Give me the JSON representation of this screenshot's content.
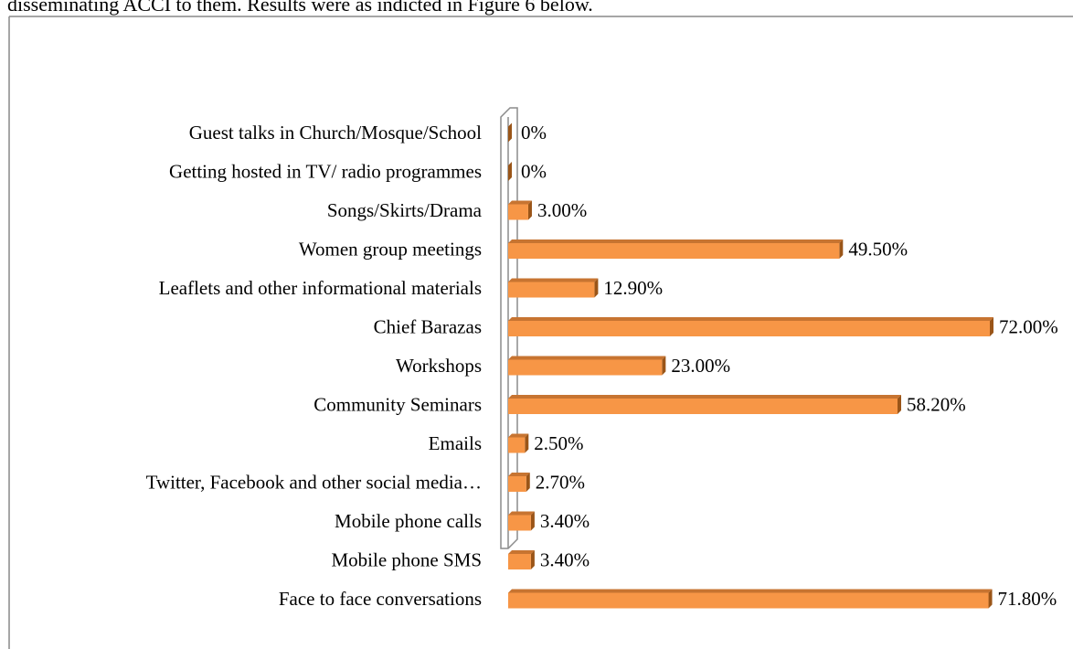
{
  "intro_text": "disseminating ACCI to them. Results were as indicted in Figure 6 below.",
  "chart_data": {
    "type": "bar",
    "orientation": "horizontal",
    "categories": [
      "Guest talks in Church/Mosque/School",
      "Getting hosted in TV/ radio programmes",
      "Songs/Skirts/Drama",
      "Women group meetings",
      "Leaflets and other informational materials",
      "Chief Barazas",
      "Workshops",
      "Community Seminars",
      "Emails",
      "Twitter, Facebook and other social media…",
      "Mobile phone calls",
      "Mobile phone SMS",
      "Face to face conversations"
    ],
    "values": [
      0,
      0,
      3,
      49.5,
      12.9,
      72,
      23,
      58.2,
      2.5,
      2.7,
      3.4,
      3.4,
      71.8
    ],
    "value_labels": [
      "0%",
      "0%",
      "3.00%",
      "49.50%",
      "12.90%",
      "72.00%",
      "23.00%",
      "58.20%",
      "2.50%",
      "2.70%",
      "3.40%",
      "3.40%",
      "71.80%"
    ],
    "color": "#f79646",
    "xlim": [
      0,
      72
    ]
  }
}
